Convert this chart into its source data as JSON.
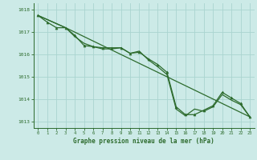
{
  "title": "Graphe pression niveau de la mer (hPa)",
  "bg_color": "#cceae7",
  "grid_color": "#aad4d0",
  "line_color": "#2d6b2d",
  "marker_color": "#2d6b2d",
  "xlim": [
    -0.5,
    23.5
  ],
  "ylim": [
    1012.7,
    1018.3
  ],
  "yticks": [
    1013,
    1014,
    1015,
    1016,
    1017,
    1018
  ],
  "xticks": [
    0,
    1,
    2,
    3,
    4,
    5,
    6,
    7,
    8,
    9,
    10,
    11,
    12,
    13,
    14,
    15,
    16,
    17,
    18,
    19,
    20,
    21,
    22,
    23
  ],
  "series1": {
    "x": [
      0,
      1,
      2,
      3,
      4,
      5,
      6,
      7,
      8,
      9,
      10,
      11,
      12,
      13,
      14,
      15,
      16,
      17,
      18,
      19,
      20,
      21,
      22,
      23
    ],
    "y": [
      1017.75,
      1017.45,
      1017.2,
      1017.2,
      1016.85,
      1016.4,
      1016.35,
      1016.3,
      1016.3,
      1016.3,
      1016.05,
      1016.1,
      1015.8,
      1015.55,
      1015.2,
      1013.65,
      1013.3,
      1013.3,
      1013.5,
      1013.7,
      1014.3,
      1014.05,
      1013.8,
      1013.2
    ]
  },
  "series2": {
    "x": [
      0,
      3,
      4,
      5,
      6,
      7,
      8,
      9,
      10,
      11,
      12,
      13,
      14,
      15,
      16,
      17,
      18,
      19,
      20,
      21,
      22,
      23
    ],
    "y": [
      1017.75,
      1017.2,
      1016.8,
      1016.5,
      1016.35,
      1016.25,
      1016.25,
      1016.3,
      1016.05,
      1016.15,
      1015.75,
      1015.45,
      1015.1,
      1013.55,
      1013.25,
      1013.55,
      1013.45,
      1013.65,
      1014.2,
      1013.95,
      1013.75,
      1013.2
    ]
  },
  "series3": {
    "x": [
      0,
      3,
      23
    ],
    "y": [
      1017.75,
      1017.2,
      1013.2
    ]
  }
}
